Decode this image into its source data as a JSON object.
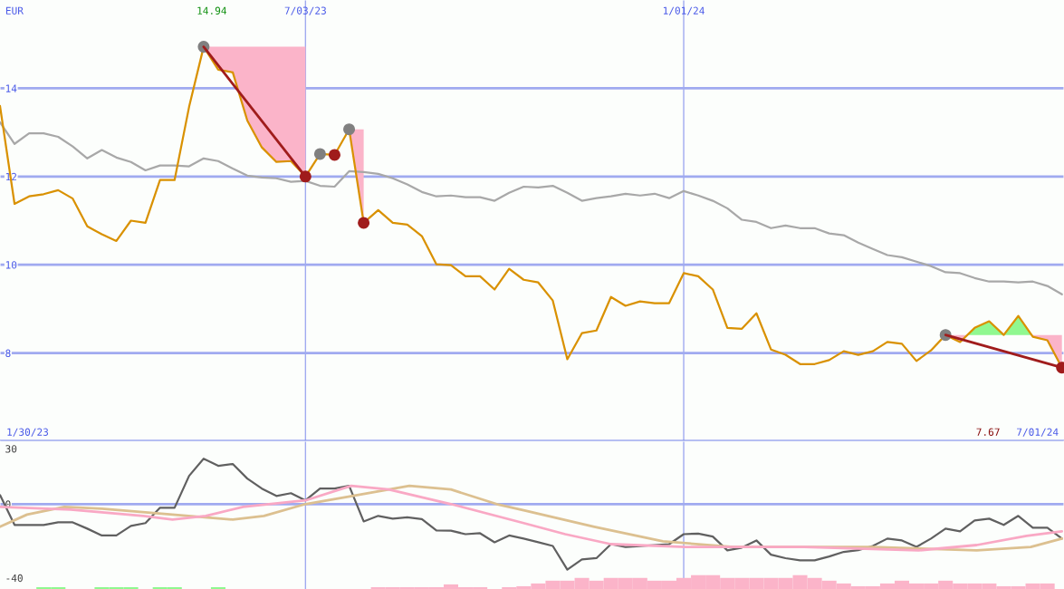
{
  "chart_data": [
    {
      "type": "line",
      "ylabel": "EUR",
      "x": [
        "2023-02-06",
        "2023-02-13",
        "2023-02-20",
        "2023-02-27",
        "2023-03-06",
        "2023-03-13",
        "2023-03-20",
        "2023-03-27",
        "2023-04-03",
        "2023-04-10",
        "2023-04-17",
        "2023-04-24",
        "2023-05-01",
        "2023-05-08",
        "2023-05-15",
        "2023-05-22",
        "2023-05-29",
        "2023-06-05",
        "2023-06-12",
        "2023-06-19",
        "2023-06-26",
        "2023-07-03",
        "2023-07-10",
        "2023-07-17",
        "2023-07-24",
        "2023-07-31",
        "2023-08-07",
        "2023-08-14",
        "2023-08-21",
        "2023-08-28",
        "2023-09-04",
        "2023-09-11",
        "2023-09-18",
        "2023-09-25",
        "2023-10-02",
        "2023-10-09",
        "2023-10-16",
        "2023-10-23",
        "2023-10-30",
        "2023-11-06",
        "2023-11-13",
        "2023-11-20",
        "2023-11-27",
        "2023-12-04",
        "2023-12-11",
        "2023-12-18",
        "2023-12-25",
        "2024-01-01",
        "2024-01-08",
        "2024-01-15",
        "2024-01-22",
        "2024-01-29",
        "2024-02-05",
        "2024-02-12",
        "2024-02-19",
        "2024-02-26",
        "2024-03-04",
        "2024-03-11",
        "2024-03-18",
        "2024-03-25",
        "2024-04-01",
        "2024-04-08",
        "2024-04-15",
        "2024-04-22",
        "2024-04-29",
        "2024-05-06",
        "2024-05-13",
        "2024-05-20",
        "2024-05-27",
        "2024-06-03",
        "2024-06-10",
        "2024-06-17",
        "2024-06-24",
        "2024-07-01"
      ],
      "series": [
        {
          "color": "#a8a8a8",
          "values": [
            13.23,
            12.74,
            12.98,
            12.98,
            12.9,
            12.68,
            12.41,
            12.6,
            12.43,
            12.33,
            12.14,
            12.25,
            12.25,
            12.23,
            12.41,
            12.35,
            12.18,
            12.02,
            11.98,
            11.96,
            11.88,
            11.9,
            11.79,
            11.77,
            12.12,
            12.1,
            12.06,
            11.96,
            11.82,
            11.65,
            11.55,
            11.57,
            11.53,
            11.53,
            11.45,
            11.63,
            11.77,
            11.75,
            11.79,
            11.63,
            11.45,
            11.51,
            11.55,
            11.61,
            11.57,
            11.61,
            11.51,
            11.67,
            11.57,
            11.45,
            11.28,
            11.02,
            10.97,
            10.83,
            10.89,
            10.83,
            10.83,
            10.71,
            10.67,
            10.5,
            10.36,
            10.22,
            10.17,
            10.07,
            9.97,
            9.83,
            9.81,
            9.7,
            9.62,
            9.62,
            9.6,
            9.62,
            9.52,
            9.33
          ]
        },
        {
          "color": "#d99100",
          "values": [
            13.6,
            11.38,
            11.55,
            11.6,
            11.69,
            11.5,
            10.87,
            10.69,
            10.54,
            11.0,
            10.95,
            11.92,
            11.92,
            13.58,
            14.94,
            14.42,
            14.36,
            13.27,
            12.66,
            12.33,
            12.35,
            12.0,
            12.51,
            12.49,
            13.07,
            10.95,
            11.24,
            10.95,
            10.91,
            10.65,
            10.01,
            9.99,
            9.74,
            9.74,
            9.44,
            9.91,
            9.66,
            9.6,
            9.19,
            7.86,
            8.45,
            8.51,
            9.27,
            9.07,
            9.17,
            9.13,
            9.13,
            9.81,
            9.74,
            9.44,
            8.57,
            8.55,
            8.9,
            8.08,
            7.96,
            7.75,
            7.75,
            7.84,
            8.04,
            7.96,
            8.04,
            8.25,
            8.21,
            7.82,
            8.06,
            8.41,
            8.25,
            8.57,
            8.72,
            8.41,
            8.84,
            8.37,
            8.29,
            7.67
          ]
        },
        {
          "color": "#a01c1c",
          "x": [
            "2023-05-15",
            "2023-07-03"
          ],
          "values": [
            14.94,
            12.0
          ]
        },
        {
          "color": "#a01c1c",
          "x": [
            "2024-05-06",
            "2024-07-01"
          ],
          "values": [
            8.41,
            7.67
          ]
        },
        {
          "type": "scatter",
          "color": "#808080",
          "x": [
            "2023-05-15",
            "2023-07-10",
            "2023-07-24",
            "2024-05-06"
          ],
          "values": [
            14.94,
            12.51,
            13.07,
            8.41
          ]
        },
        {
          "type": "scatter",
          "color": "#a01c1c",
          "x": [
            "2023-07-03",
            "2023-07-17",
            "2023-07-31",
            "2024-07-01"
          ],
          "values": [
            12.0,
            12.49,
            10.95,
            7.67
          ]
        }
      ],
      "xlim": [
        "2023-02-06",
        "2024-07-02"
      ],
      "xticks": [
        {
          "value": "2023-07-03",
          "label": "7/03/23"
        },
        {
          "value": "2024-01-01",
          "label": "1/01/24"
        }
      ],
      "ylim": [
        6,
        16
      ],
      "yticks": [
        8,
        10,
        12,
        14
      ],
      "grid": true,
      "annotations": [
        "14.94",
        "7.67",
        "1/30/23",
        "7/01/24"
      ]
    },
    {
      "type": "line",
      "tick_labels": "y",
      "x": [
        "2023-02-06",
        "2023-02-13",
        "2023-02-20",
        "2023-02-27",
        "2023-03-06",
        "2023-03-13",
        "2023-03-20",
        "2023-03-27",
        "2023-04-03",
        "2023-04-10",
        "2023-04-17",
        "2023-04-24",
        "2023-05-01",
        "2023-05-08",
        "2023-05-15",
        "2023-05-22",
        "2023-05-29",
        "2023-06-05",
        "2023-06-12",
        "2023-06-19",
        "2023-06-26",
        "2023-07-03",
        "2023-07-10",
        "2023-07-17",
        "2023-07-24",
        "2023-07-31",
        "2023-08-07",
        "2023-08-14",
        "2023-08-21",
        "2023-08-28",
        "2023-09-04",
        "2023-09-11",
        "2023-09-18",
        "2023-09-25",
        "2023-10-02",
        "2023-10-09",
        "2023-10-16",
        "2023-10-23",
        "2023-10-30",
        "2023-11-06",
        "2023-11-13",
        "2023-11-20",
        "2023-11-27",
        "2023-12-04",
        "2023-12-11",
        "2023-12-18",
        "2023-12-25",
        "2024-01-01",
        "2024-01-08",
        "2024-01-15",
        "2024-01-22",
        "2024-01-29",
        "2024-02-05",
        "2024-02-12",
        "2024-02-19",
        "2024-02-26",
        "2024-03-04",
        "2024-03-11",
        "2024-03-18",
        "2024-03-25",
        "2024-04-01",
        "2024-04-08",
        "2024-04-15",
        "2024-04-22",
        "2024-04-29",
        "2024-05-06",
        "2024-05-13",
        "2024-05-20",
        "2024-05-27",
        "2024-06-03",
        "2024-06-10",
        "2024-06-17",
        "2024-06-24",
        "2024-07-01"
      ],
      "series": [
        {
          "type": "bar",
          "color": "#90f890",
          "x": [
            "2023-02-27",
            "2023-03-06",
            "2023-03-27",
            "2023-04-03",
            "2023-04-10",
            "2023-04-24",
            "2023-05-01",
            "2023-05-22"
          ],
          "values": [
            1,
            1,
            1,
            1,
            1,
            1,
            1,
            1
          ],
          "base": [
            -46,
            -46,
            -46,
            -46,
            -46,
            -46,
            -46,
            -46
          ]
        },
        {
          "type": "bar",
          "color": "#fbb4c9",
          "x": [
            "2023-08-07",
            "2023-08-14",
            "2023-08-21",
            "2023-08-28",
            "2023-09-04",
            "2023-09-11",
            "2023-09-18",
            "2023-09-25",
            "2023-10-09",
            "2023-10-16",
            "2023-10-23",
            "2023-10-30",
            "2023-11-06",
            "2023-11-13",
            "2023-11-20",
            "2023-11-27",
            "2023-12-04",
            "2023-12-11",
            "2023-12-18",
            "2023-12-25",
            "2024-01-01",
            "2024-01-08",
            "2024-01-15",
            "2024-01-22",
            "2024-01-29",
            "2024-02-05",
            "2024-02-12",
            "2024-02-19",
            "2024-02-26",
            "2024-03-04",
            "2024-03-11",
            "2024-03-18",
            "2024-03-25",
            "2024-04-01",
            "2024-04-08",
            "2024-04-15",
            "2024-04-22",
            "2024-04-29",
            "2024-05-06",
            "2024-05-13",
            "2024-05-20",
            "2024-05-27",
            "2024-06-03",
            "2024-06-10",
            "2024-06-17",
            "2024-06-24"
          ],
          "values": [
            1,
            1,
            1,
            1,
            1,
            2.5,
            1,
            1,
            1,
            1.5,
            3,
            4.5,
            4.5,
            6,
            4.5,
            6,
            6,
            6,
            4.5,
            4.5,
            6,
            7.5,
            7.5,
            6,
            6,
            6,
            6,
            6,
            7.5,
            6,
            4.5,
            3,
            1.5,
            1.5,
            3,
            4.5,
            3,
            3,
            4.5,
            3,
            3,
            3,
            1.5,
            1.5,
            3,
            3
          ],
          "base": [
            -46,
            -46,
            -46,
            -46,
            -46,
            -46,
            -46,
            -46,
            -46,
            -46,
            -46,
            -46,
            -46,
            -46,
            -46,
            -46,
            -46,
            -46,
            -46,
            -46,
            -46,
            -46,
            -46,
            -46,
            -46,
            -46,
            -46,
            -46,
            -46,
            -46,
            -46,
            -46,
            -46,
            -46,
            -46,
            -46,
            -46,
            -46,
            -46,
            -46,
            -46,
            -46,
            -46,
            -46,
            -46,
            -46
          ]
        },
        {
          "color": "#dcc090",
          "x": [
            "2023-02-06",
            "2023-02-19",
            "2023-03-09",
            "2023-03-27",
            "2023-04-30",
            "2023-05-29",
            "2023-06-13",
            "2023-07-03",
            "2023-07-23",
            "2023-08-22",
            "2023-09-11",
            "2023-10-03",
            "2023-10-16",
            "2023-11-19",
            "2023-12-22",
            "2024-01-25",
            "2024-04-01",
            "2024-05-21",
            "2024-06-16",
            "2024-07-01"
          ],
          "values": [
            -12.3,
            -5.7,
            -1.5,
            -2.5,
            -5.7,
            -8.4,
            -6.4,
            0,
            3.9,
            9.9,
            7.9,
            0,
            -3.4,
            -12.3,
            -20.2,
            -23.2,
            -23.2,
            -25.1,
            -23.2,
            -18.7
          ]
        },
        {
          "color": "#f9a8c4",
          "x": [
            "2023-02-06",
            "2023-03-12",
            "2023-04-16",
            "2023-04-30",
            "2023-05-16",
            "2023-06-03",
            "2023-07-03",
            "2023-07-25",
            "2023-08-12",
            "2023-09-11",
            "2023-10-16",
            "2023-11-05",
            "2023-11-27",
            "2024-01-02",
            "2024-02-28",
            "2024-04-23",
            "2024-05-21",
            "2024-06-14",
            "2024-07-01"
          ],
          "values": [
            -1.5,
            -3,
            -6.4,
            -8.4,
            -6.4,
            -1.5,
            2,
            9.9,
            7.9,
            0,
            -10.3,
            -16.3,
            -21.7,
            -23.2,
            -23.2,
            -25.1,
            -22.2,
            -17.2,
            -14.8
          ]
        },
        {
          "color": "#606060",
          "values": [
            4.9,
            -11.3,
            -11.3,
            -11.3,
            -9.9,
            -9.9,
            -13.3,
            -17,
            -17,
            -11.8,
            -10.3,
            -2,
            -2,
            15.3,
            24.6,
            20.7,
            21.7,
            13.8,
            8.4,
            4.4,
            5.9,
            2,
            8.4,
            8.4,
            9.9,
            -9.4,
            -6.4,
            -7.9,
            -7.2,
            -8.1,
            -14.3,
            -14.4,
            -16.3,
            -15.8,
            -20.7,
            -17,
            -18.7,
            -20.7,
            -22.7,
            -35.5,
            -30,
            -29.3,
            -21.7,
            -23.2,
            -22.7,
            -22.2,
            -21.7,
            -16.3,
            -16,
            -17.6,
            -25.1,
            -23.6,
            -19.7,
            -27.4,
            -29.3,
            -30.5,
            -30.5,
            -28.4,
            -25.9,
            -25,
            -22.7,
            -18.7,
            -19.7,
            -23.2,
            -18.7,
            -13.3,
            -14.8,
            -8.9,
            -7.9,
            -11.3,
            -6.4,
            -12.8,
            -12.8,
            -18.7
          ]
        }
      ],
      "xlim": [
        "2023-02-06",
        "2024-07-02"
      ],
      "xticks": [
        {
          "value": "2023-07-03",
          "label": null
        },
        {
          "value": "2024-01-01",
          "label": null
        }
      ],
      "ylim": [
        -46,
        34
      ],
      "yticks": [
        -40,
        0,
        30
      ],
      "grid": "x",
      "ref_lines": [
        {
          "axis": "y",
          "value": 0,
          "color": "#a0aaf0"
        }
      ]
    }
  ]
}
